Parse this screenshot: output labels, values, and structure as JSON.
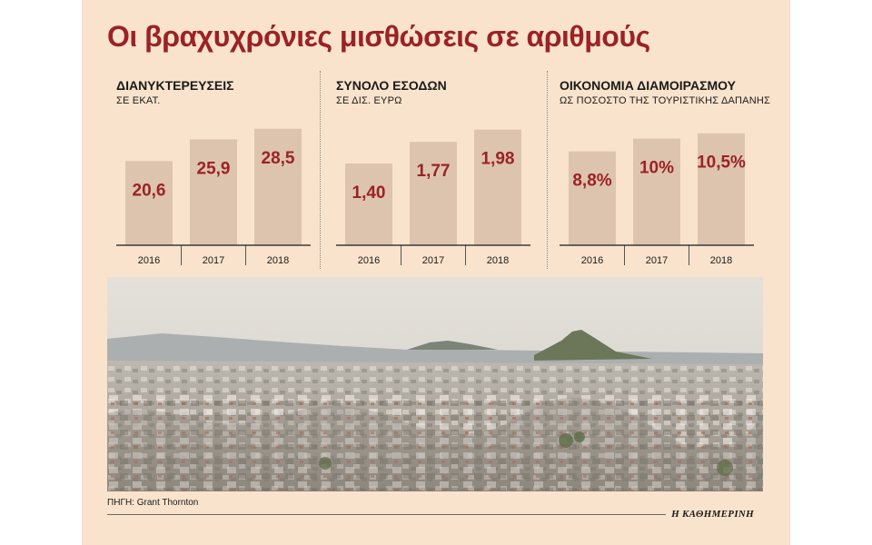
{
  "title": "Οι βραχυχρόνιες μισθώσεις σε αριθμούς",
  "source": "ΠΗΓΗ: Grant Thornton",
  "publisher": "Η ΚΑΘΗΜΕΡΙΝΗ",
  "colors": {
    "bar": "#ddc4ae",
    "value_text": "#9b2226",
    "title": "#9b2226",
    "panel": "#f9e3cc"
  },
  "chart_data": [
    {
      "type": "bar",
      "title": "ΔΙΑΝΥΚΤΕΡΕΥΣΕΙΣ",
      "subtitle": "ΣΕ ΕΚΑΤ.",
      "categories": [
        "2016",
        "2017",
        "2018"
      ],
      "values": [
        20.6,
        25.9,
        28.5
      ],
      "labels": [
        "20,6",
        "25,9",
        "28,5"
      ],
      "ylim": [
        0,
        30
      ]
    },
    {
      "type": "bar",
      "title": "ΣΥΝΟΛΟ ΕΣΟΔΩΝ",
      "subtitle": "ΣΕ ΔΙΣ. ΕΥΡΩ",
      "categories": [
        "2016",
        "2017",
        "2018"
      ],
      "values": [
        1.4,
        1.77,
        1.98
      ],
      "labels": [
        "1,40",
        "1,77",
        "1,98"
      ],
      "ylim": [
        0,
        2.1
      ]
    },
    {
      "type": "bar",
      "title": "ΟΙΚΟΝΟΜΙΑ ΔΙΑΜΟΙΡΑΣΜΟΥ",
      "subtitle": "ΩΣ ΠΟΣΟΣΤΟ ΤΗΣ ΤΟΥΡΙΣΤΙΚΗΣ ΔΑΠΑΝΗΣ",
      "categories": [
        "2016",
        "2017",
        "2018"
      ],
      "values": [
        8.8,
        10,
        10.5
      ],
      "labels": [
        "8,8%",
        "10%",
        "10,5%"
      ],
      "ylim": [
        0,
        11.5
      ]
    }
  ],
  "photo": {
    "sky": "#dcdad3",
    "haze": "#c9c7c0",
    "mountain": "#9ea3a6",
    "hill": "#6f7a5e",
    "city": "#bfb9b0"
  }
}
